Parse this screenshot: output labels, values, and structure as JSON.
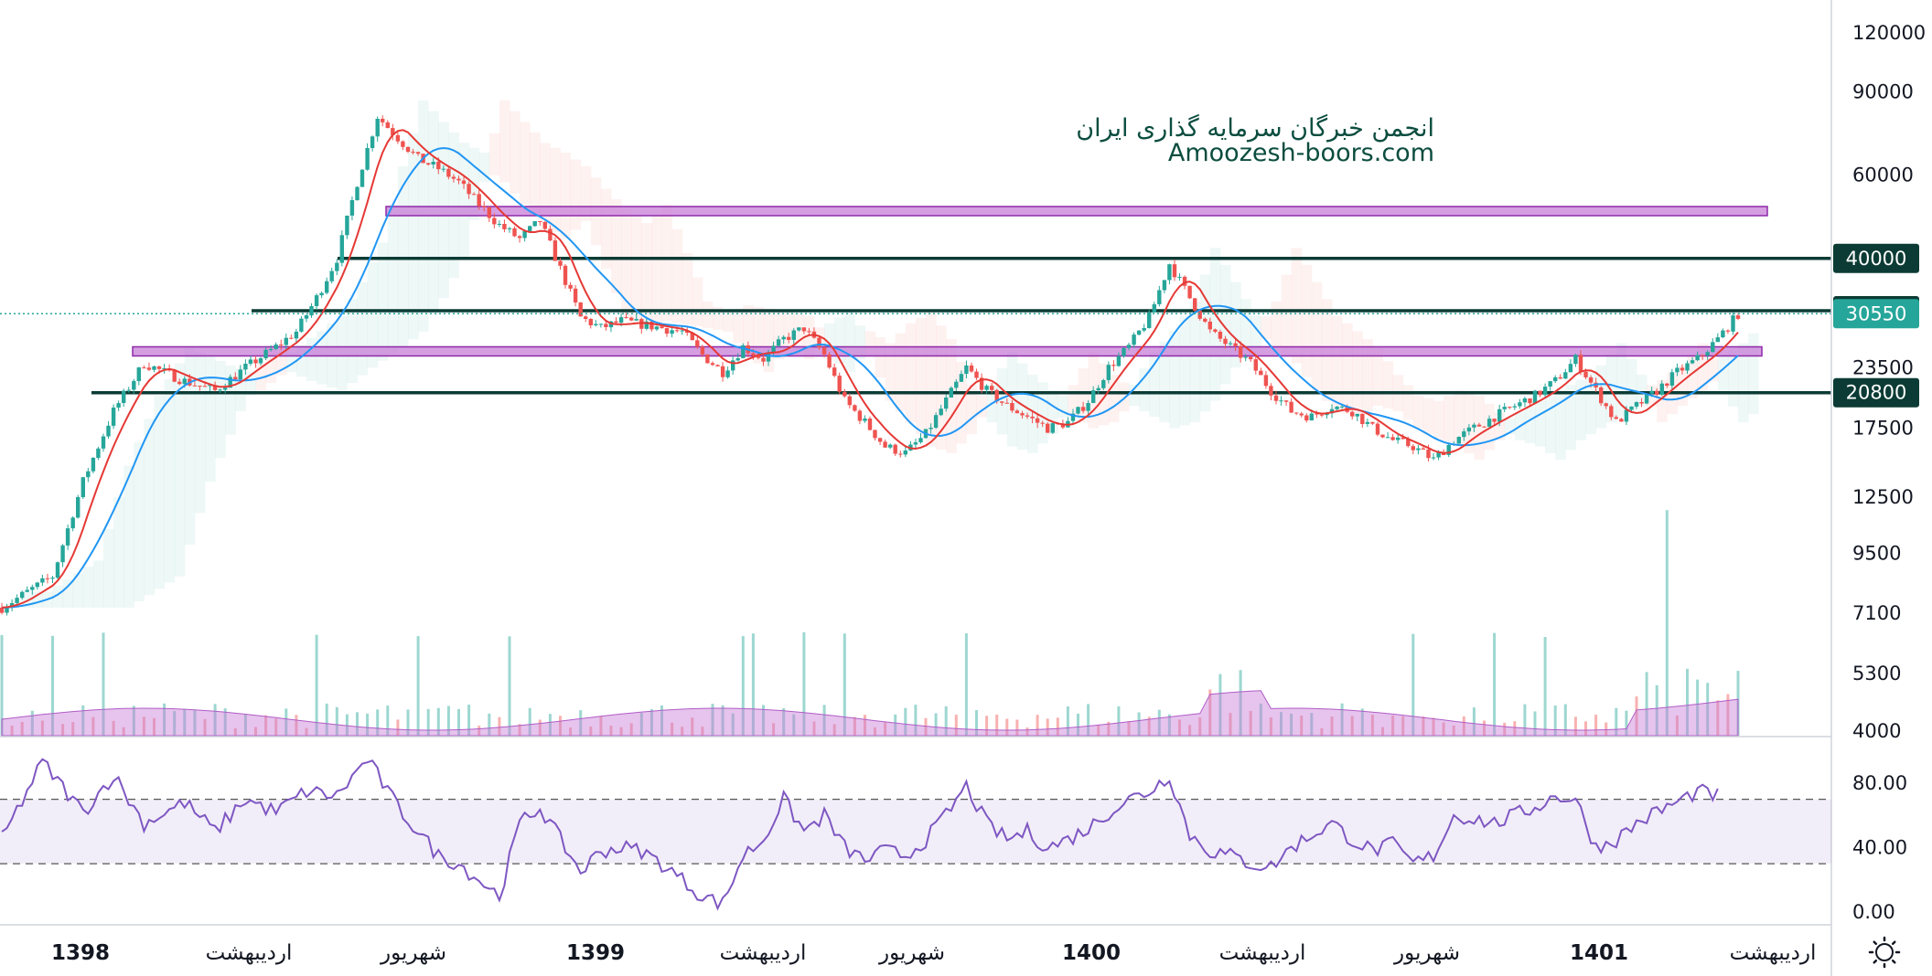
{
  "watermark": {
    "line1": "انجمن خبرگان سرمایه گذاری ایران",
    "line2": "Amoozesh-boors.com"
  },
  "colors": {
    "up": "#26a69a",
    "down": "#ef5350",
    "ma_fast": "#e53935",
    "ma_slow": "#2196f3",
    "level": "#0b3b34",
    "zone": "#c77dd7",
    "rsi": "#7e57c2",
    "current": "#26a69a"
  },
  "chart_data": [
    {
      "type": "line",
      "log_scale": true,
      "y_ticks": [
        120000,
        90000,
        60000,
        40000,
        31000,
        23500,
        17500,
        12500,
        9500,
        7100,
        5300,
        4000
      ],
      "x_labels": [
        "1398",
        "اردیبهشت",
        "شهریور",
        "1399",
        "اردیبهشت",
        "شهریور",
        "1400",
        "اردیبهشت",
        "شهریور",
        "1401",
        "اردیبهشت"
      ],
      "levels": [
        40000,
        31000,
        20800
      ],
      "zones": [
        [
          49500,
          51500
        ],
        [
          25000,
          26000
        ]
      ],
      "price_badges": [
        {
          "value": "40000",
          "kind": "level"
        },
        {
          "value": "31000",
          "kind": "level"
        },
        {
          "value": "30550",
          "kind": "current"
        },
        {
          "value": "20800",
          "kind": "level"
        }
      ],
      "current_price": 30550,
      "price_path": [
        [
          0,
          7300
        ],
        [
          5,
          8500
        ],
        [
          8,
          13500
        ],
        [
          11,
          19000
        ],
        [
          14,
          24000
        ],
        [
          18,
          22000
        ],
        [
          21,
          21000
        ],
        [
          24,
          23500
        ],
        [
          27,
          26000
        ],
        [
          29,
          28000
        ],
        [
          31,
          33000
        ],
        [
          33,
          40000
        ],
        [
          35,
          58000
        ],
        [
          37,
          80000
        ],
        [
          39,
          72000
        ],
        [
          41,
          65000
        ],
        [
          43,
          62000
        ],
        [
          45,
          58000
        ],
        [
          47,
          52000
        ],
        [
          49,
          47000
        ],
        [
          51,
          44000
        ],
        [
          53,
          48000
        ],
        [
          55,
          38000
        ],
        [
          57,
          30000
        ],
        [
          59,
          28500
        ],
        [
          61,
          29500
        ],
        [
          63,
          29000
        ],
        [
          65,
          28500
        ],
        [
          67,
          28000
        ],
        [
          69,
          25000
        ],
        [
          71,
          23000
        ],
        [
          73,
          26000
        ],
        [
          75,
          24500
        ],
        [
          77,
          27000
        ],
        [
          79,
          28500
        ],
        [
          81,
          25000
        ],
        [
          83,
          20000
        ],
        [
          85,
          18000
        ],
        [
          87,
          16000
        ],
        [
          89,
          15500
        ],
        [
          91,
          17000
        ],
        [
          93,
          20000
        ],
        [
          95,
          23500
        ],
        [
          97,
          21000
        ],
        [
          99,
          19500
        ],
        [
          101,
          18500
        ],
        [
          103,
          17500
        ],
        [
          105,
          18000
        ],
        [
          107,
          20000
        ],
        [
          109,
          23500
        ],
        [
          111,
          26000
        ],
        [
          113,
          30000
        ],
        [
          115,
          39000
        ],
        [
          117,
          33000
        ],
        [
          119,
          28000
        ],
        [
          121,
          26000
        ],
        [
          123,
          24000
        ],
        [
          125,
          21000
        ],
        [
          127,
          19000
        ],
        [
          129,
          18500
        ],
        [
          131,
          19500
        ],
        [
          133,
          19000
        ],
        [
          135,
          17500
        ],
        [
          137,
          16500
        ],
        [
          139,
          16000
        ],
        [
          141,
          15000
        ],
        [
          143,
          16500
        ],
        [
          145,
          17500
        ],
        [
          147,
          18500
        ],
        [
          149,
          19500
        ],
        [
          151,
          20500
        ],
        [
          153,
          22000
        ],
        [
          155,
          24500
        ],
        [
          157,
          21000
        ],
        [
          159,
          18000
        ],
        [
          161,
          19500
        ],
        [
          163,
          21000
        ],
        [
          165,
          23000
        ],
        [
          167,
          24500
        ],
        [
          169,
          27000
        ],
        [
          171,
          30500
        ]
      ],
      "volume_baseline": 4000
    },
    {
      "type": "line",
      "name": "RSI",
      "y_ticks": [
        80,
        40,
        0
      ],
      "bands": [
        70,
        30
      ],
      "values": [
        [
          0,
          45
        ],
        [
          4,
          93
        ],
        [
          8,
          62
        ],
        [
          11,
          85
        ],
        [
          14,
          55
        ],
        [
          18,
          68
        ],
        [
          21,
          50
        ],
        [
          24,
          70
        ],
        [
          27,
          62
        ],
        [
          30,
          75
        ],
        [
          33,
          72
        ],
        [
          36,
          95
        ],
        [
          39,
          65
        ],
        [
          41,
          50
        ],
        [
          43,
          35
        ],
        [
          45,
          30
        ],
        [
          47,
          20
        ],
        [
          49,
          10
        ],
        [
          51,
          55
        ],
        [
          53,
          65
        ],
        [
          55,
          45
        ],
        [
          57,
          25
        ],
        [
          59,
          38
        ],
        [
          61,
          40
        ],
        [
          63,
          38
        ],
        [
          65,
          30
        ],
        [
          67,
          20
        ],
        [
          69,
          10
        ],
        [
          71,
          5
        ],
        [
          73,
          35
        ],
        [
          75,
          45
        ],
        [
          77,
          70
        ],
        [
          79,
          50
        ],
        [
          81,
          60
        ],
        [
          83,
          40
        ],
        [
          85,
          32
        ],
        [
          87,
          38
        ],
        [
          89,
          35
        ],
        [
          91,
          45
        ],
        [
          93,
          60
        ],
        [
          95,
          78
        ],
        [
          97,
          55
        ],
        [
          99,
          45
        ],
        [
          101,
          50
        ],
        [
          103,
          40
        ],
        [
          105,
          45
        ],
        [
          107,
          52
        ],
        [
          109,
          62
        ],
        [
          111,
          70
        ],
        [
          113,
          75
        ],
        [
          115,
          85
        ],
        [
          117,
          48
        ],
        [
          119,
          38
        ],
        [
          121,
          35
        ],
        [
          123,
          30
        ],
        [
          125,
          28
        ],
        [
          127,
          40
        ],
        [
          129,
          48
        ],
        [
          131,
          55
        ],
        [
          133,
          45
        ],
        [
          135,
          38
        ],
        [
          137,
          42
        ],
        [
          139,
          30
        ],
        [
          141,
          35
        ],
        [
          143,
          60
        ],
        [
          145,
          58
        ],
        [
          147,
          55
        ],
        [
          149,
          60
        ],
        [
          151,
          65
        ],
        [
          153,
          72
        ],
        [
          155,
          70
        ],
        [
          157,
          40
        ],
        [
          159,
          45
        ],
        [
          161,
          55
        ],
        [
          163,
          62
        ],
        [
          165,
          68
        ],
        [
          167,
          75
        ],
        [
          169,
          72
        ]
      ]
    }
  ]
}
